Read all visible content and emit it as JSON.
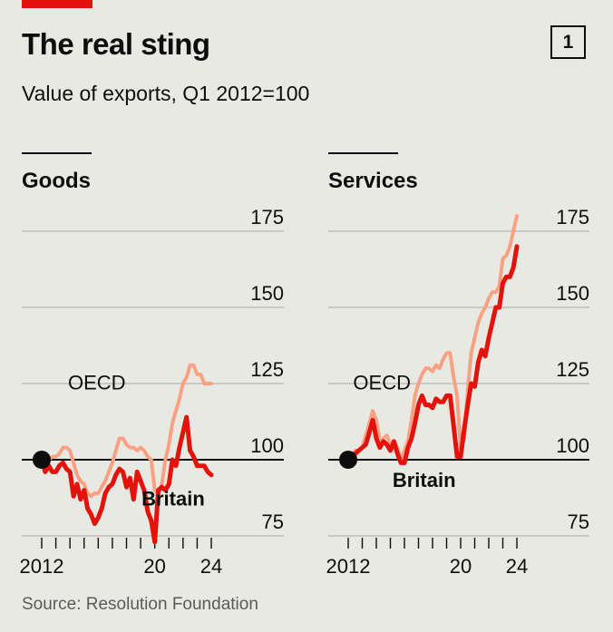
{
  "header": {
    "title": "The real sting",
    "subtitle": "Value of exports, Q1 2012=100",
    "badge": "1"
  },
  "source": "Source: Resolution Foundation",
  "colors": {
    "britain": "#e3120b",
    "oecd": "#f8a283",
    "grid": "#b5b5b1",
    "axis": "#0d0d0d",
    "background": "#e9e9e3"
  },
  "chart_data": [
    {
      "type": "line",
      "title": "Goods",
      "ylim": [
        70,
        180
      ],
      "yticks": [
        75,
        100,
        125,
        150,
        175
      ],
      "xlim": [
        2012,
        2025
      ],
      "xtick_labels": [
        {
          "x": 2012,
          "label": "2012"
        },
        {
          "x": 2020,
          "label": "20"
        },
        {
          "x": 2024,
          "label": "24"
        }
      ],
      "grid": true,
      "series": [
        {
          "name": "OECD",
          "color": "#f8a283",
          "x": [
            2012,
            2012.25,
            2012.5,
            2012.75,
            2013,
            2013.25,
            2013.5,
            2013.75,
            2014,
            2014.25,
            2014.5,
            2014.75,
            2015,
            2015.25,
            2015.5,
            2015.75,
            2016,
            2016.25,
            2016.5,
            2016.75,
            2017,
            2017.25,
            2017.5,
            2017.75,
            2018,
            2018.25,
            2018.5,
            2018.75,
            2019,
            2019.25,
            2019.5,
            2019.75,
            2020,
            2020.25,
            2020.5,
            2020.75,
            2021,
            2021.25,
            2021.5,
            2021.75,
            2022,
            2022.25,
            2022.5,
            2022.75,
            2023,
            2023.25,
            2023.5,
            2023.75,
            2024
          ],
          "values": [
            100,
            100,
            100,
            101,
            101,
            102,
            104,
            104,
            103,
            99,
            95,
            93,
            92,
            89,
            88,
            89,
            89,
            91,
            93,
            96,
            99,
            103,
            107,
            107,
            105,
            104,
            104,
            103,
            104,
            103,
            101,
            100,
            90,
            89,
            92,
            100,
            105,
            112,
            116,
            120,
            125,
            127,
            131,
            131,
            128,
            128,
            125,
            125,
            125
          ]
        },
        {
          "name": "Britain",
          "color": "#e3120b",
          "x": [
            2012,
            2012.25,
            2012.5,
            2012.75,
            2013,
            2013.25,
            2013.5,
            2013.75,
            2014,
            2014.25,
            2014.5,
            2014.75,
            2015,
            2015.25,
            2015.5,
            2015.75,
            2016,
            2016.25,
            2016.5,
            2016.75,
            2017,
            2017.25,
            2017.5,
            2017.75,
            2018,
            2018.25,
            2018.5,
            2018.75,
            2019,
            2019.25,
            2019.5,
            2019.75,
            2020,
            2020.25,
            2020.5,
            2020.75,
            2021,
            2021.25,
            2021.5,
            2021.75,
            2022,
            2022.25,
            2022.5,
            2022.75,
            2023,
            2023.25,
            2023.5,
            2023.75,
            2024
          ],
          "values": [
            100,
            96,
            98,
            96,
            96,
            98,
            99,
            97,
            96,
            88,
            92,
            87,
            90,
            84,
            82,
            79,
            81,
            84,
            89,
            91,
            92,
            95,
            97,
            96,
            91,
            94,
            87,
            96,
            93,
            90,
            83,
            80,
            73,
            90,
            91,
            90,
            92,
            100,
            98,
            104,
            109,
            114,
            103,
            101,
            98,
            98,
            98,
            96,
            95
          ]
        }
      ],
      "labels": [
        {
          "text": "OECD",
          "x": 2015.9,
          "y": 123
        },
        {
          "text": "Britain",
          "x": 2021.3,
          "y": 85
        }
      ]
    },
    {
      "type": "line",
      "title": "Services",
      "ylim": [
        70,
        180
      ],
      "yticks": [
        75,
        100,
        125,
        150,
        175
      ],
      "xlim": [
        2012,
        2025
      ],
      "xtick_labels": [
        {
          "x": 2012,
          "label": "2012"
        },
        {
          "x": 2020,
          "label": "20"
        },
        {
          "x": 2024,
          "label": "24"
        }
      ],
      "grid": true,
      "series": [
        {
          "name": "OECD",
          "color": "#f8a283",
          "x": [
            2012,
            2012.25,
            2012.5,
            2012.75,
            2013,
            2013.25,
            2013.5,
            2013.75,
            2014,
            2014.25,
            2014.5,
            2014.75,
            2015,
            2015.25,
            2015.5,
            2015.75,
            2016,
            2016.25,
            2016.5,
            2016.75,
            2017,
            2017.25,
            2017.5,
            2017.75,
            2018,
            2018.25,
            2018.5,
            2018.75,
            2019,
            2019.25,
            2019.5,
            2019.75,
            2020,
            2020.25,
            2020.5,
            2020.75,
            2021,
            2021.25,
            2021.5,
            2021.75,
            2022,
            2022.25,
            2022.5,
            2022.75,
            2023,
            2023.25,
            2023.5,
            2023.75,
            2024
          ],
          "values": [
            100,
            101,
            103,
            103,
            104,
            108,
            112,
            116,
            113,
            106,
            107,
            108,
            105,
            106,
            104,
            100,
            103,
            106,
            113,
            121,
            125,
            128,
            130,
            130,
            129,
            131,
            130,
            133,
            135,
            135,
            127,
            121,
            104,
            107,
            123,
            135,
            140,
            145,
            148,
            150,
            153,
            155,
            155,
            157,
            166,
            167,
            170,
            175,
            180
          ]
        },
        {
          "name": "Britain",
          "color": "#e3120b",
          "x": [
            2012,
            2012.25,
            2012.5,
            2012.75,
            2013,
            2013.25,
            2013.5,
            2013.75,
            2014,
            2014.25,
            2014.5,
            2014.75,
            2015,
            2015.25,
            2015.5,
            2015.75,
            2016,
            2016.25,
            2016.5,
            2016.75,
            2017,
            2017.25,
            2017.5,
            2017.75,
            2018,
            2018.25,
            2018.5,
            2018.75,
            2019,
            2019.25,
            2019.5,
            2019.75,
            2020,
            2020.25,
            2020.5,
            2020.75,
            2021,
            2021.25,
            2021.5,
            2021.75,
            2022,
            2022.25,
            2022.5,
            2022.75,
            2023,
            2023.25,
            2023.5,
            2023.75,
            2024
          ],
          "values": [
            100,
            100,
            102,
            103,
            104,
            105,
            109,
            113,
            107,
            104,
            106,
            105,
            103,
            106,
            102,
            99,
            99,
            104,
            107,
            112,
            118,
            121,
            118,
            118,
            117,
            120,
            119,
            119,
            121,
            121,
            111,
            101,
            101,
            110,
            118,
            125,
            124,
            132,
            136,
            134,
            140,
            145,
            150,
            150,
            158,
            160,
            160,
            163,
            170
          ]
        }
      ],
      "labels": [
        {
          "text": "OECD",
          "x": 2014.4,
          "y": 123
        },
        {
          "text": "Britain",
          "x": 2017.4,
          "y": 91
        }
      ]
    }
  ]
}
